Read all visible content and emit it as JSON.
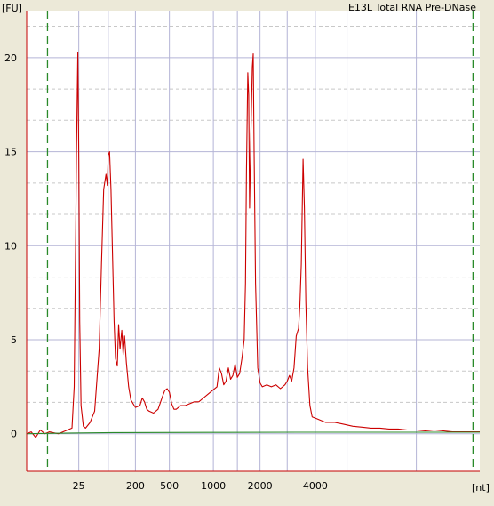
{
  "chart_data": {
    "type": "line",
    "title": "E13L Total RNA Pre-DNase",
    "ylabel": "[FU]",
    "xlabel": "[nt]",
    "ylim": [
      -2,
      22.5
    ],
    "y_ticks": [
      0,
      5,
      10,
      15,
      20
    ],
    "y_tick_labels": [
      "0",
      "5",
      "10",
      "15",
      "20"
    ],
    "y_minor_ticks": [
      1.67,
      3.33,
      6.67,
      8.33,
      11.67,
      13.33,
      16.67,
      18.33,
      21.67
    ],
    "x_domain": "migration",
    "xlim": [
      0,
      100
    ],
    "x_tick_labels": [
      {
        "label": "25",
        "x": 11.5
      },
      {
        "label": "200",
        "x": 24
      },
      {
        "label": "500",
        "x": 31.5
      },
      {
        "label": "1000",
        "x": 41.2
      },
      {
        "label": "2000",
        "x": 51.5
      },
      {
        "label": "4000",
        "x": 63.7
      }
    ],
    "x_gridlines": [
      11.5,
      18,
      24,
      31.5,
      41.2,
      46.5,
      51.5,
      57.5,
      63.7,
      70.7,
      86
    ],
    "marker_lines": [
      4.6,
      98.5
    ],
    "grid": true,
    "colors": {
      "plot_bg": "#ffffff",
      "frame": "#ece9d8",
      "axis": "#c40000",
      "grid_major": "#b4b4d6",
      "grid_minor": "#c8c8c8",
      "sample": "#cc0000",
      "baseline": "#2a8a2a",
      "marker": "#2a8a2a"
    },
    "series": [
      {
        "id": "sample",
        "x": [
          0,
          1,
          2,
          3,
          4,
          5,
          6,
          7,
          8,
          9,
          10,
          10.5,
          11,
          11.3,
          11.5,
          11.7,
          12,
          12.5,
          13,
          14,
          15,
          16,
          16.5,
          17,
          17.5,
          17.8,
          18,
          18.3,
          18.6,
          19,
          19.3,
          19.6,
          20,
          20.3,
          20.6,
          21,
          21.3,
          21.6,
          22,
          22.5,
          23,
          24,
          25,
          25.5,
          26,
          26.5,
          27,
          28,
          29,
          30,
          30.5,
          31,
          31.5,
          32,
          32.5,
          33,
          33.5,
          34,
          35,
          36,
          37,
          38,
          39,
          40,
          41,
          42,
          42.5,
          43,
          43.5,
          44,
          44.5,
          45,
          45.5,
          46,
          46.5,
          47,
          47.5,
          48,
          48.3,
          48.5,
          48.8,
          49,
          49.2,
          49.5,
          49.8,
          50,
          50.2,
          50.5,
          51,
          51.5,
          52,
          53,
          54,
          55,
          56,
          57,
          57.5,
          58,
          58.5,
          59,
          59.5,
          60,
          60.3,
          60.6,
          61,
          61.3,
          61.6,
          62,
          62.5,
          63,
          64,
          65,
          66,
          68,
          70,
          72,
          74,
          76,
          78,
          80,
          82,
          84,
          86,
          88,
          90,
          92,
          94,
          96,
          98,
          100
        ],
        "y": [
          0,
          0.1,
          -0.2,
          0.2,
          0.0,
          0.1,
          0.05,
          0.0,
          0.1,
          0.2,
          0.3,
          2.5,
          15.0,
          20.3,
          14.5,
          6.0,
          1.5,
          0.4,
          0.3,
          0.6,
          1.2,
          4.5,
          9.0,
          13.0,
          13.8,
          13.2,
          14.8,
          15.0,
          13.0,
          9.0,
          6.0,
          4.0,
          3.6,
          5.8,
          4.5,
          5.5,
          4.2,
          5.2,
          3.8,
          2.5,
          1.8,
          1.4,
          1.5,
          1.9,
          1.7,
          1.3,
          1.2,
          1.1,
          1.3,
          2.0,
          2.3,
          2.4,
          2.2,
          1.6,
          1.3,
          1.3,
          1.4,
          1.5,
          1.5,
          1.6,
          1.7,
          1.7,
          1.9,
          2.1,
          2.3,
          2.5,
          3.5,
          3.2,
          2.6,
          2.8,
          3.5,
          2.9,
          3.1,
          3.7,
          3.0,
          3.2,
          4.0,
          5.0,
          8.0,
          14.0,
          19.2,
          18.0,
          12.0,
          16.0,
          19.5,
          20.2,
          15.0,
          8.0,
          3.5,
          2.7,
          2.5,
          2.6,
          2.5,
          2.6,
          2.4,
          2.6,
          2.8,
          3.1,
          2.8,
          3.5,
          5.2,
          5.6,
          6.8,
          9.0,
          14.6,
          12.0,
          7.0,
          3.5,
          1.5,
          0.9,
          0.8,
          0.7,
          0.6,
          0.6,
          0.5,
          0.4,
          0.35,
          0.3,
          0.3,
          0.25,
          0.25,
          0.2,
          0.2,
          0.15,
          0.2,
          0.15,
          0.1,
          0.1,
          0.1,
          0.1
        ]
      },
      {
        "id": "baseline",
        "x": [
          0,
          4.6,
          10,
          20,
          40,
          60,
          80,
          100
        ],
        "y": [
          0,
          0.02,
          0.04,
          0.06,
          0.07,
          0.08,
          0.08,
          0.08
        ]
      }
    ]
  }
}
